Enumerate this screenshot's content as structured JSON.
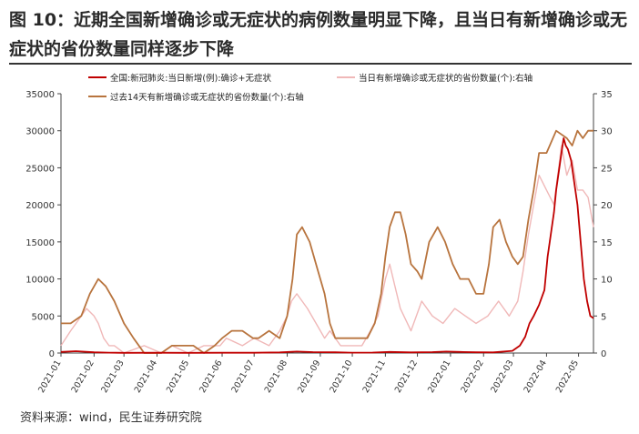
{
  "figure": {
    "title": "图 10：近期全国新增确诊或无症状的病例数量明显下降，且当日有新增确诊或无症状的省份数量同样逐步下降",
    "source": "资料来源：wind，民生证券研究院"
  },
  "colors": {
    "national_cases": "#c00000",
    "daily_provinces": "#f0b8b8",
    "provinces_14d": "#b8743e",
    "axis": "#444444"
  },
  "chart_data": {
    "type": "line",
    "x_type": "date",
    "xlim": [
      "2021-01-01",
      "2022-05-15"
    ],
    "x_ticks": [
      "2021-01",
      "2021-02",
      "2021-03",
      "2021-04",
      "2021-05",
      "2021-06",
      "2021-07",
      "2021-08",
      "2021-09",
      "2021-10",
      "2021-11",
      "2021-12",
      "2022-01",
      "2022-02",
      "2022-03",
      "2022-04",
      "2022-05"
    ],
    "y_left": {
      "range": [
        0,
        35000
      ],
      "ticks": [
        "0",
        "5000",
        "10000",
        "15000",
        "20000",
        "25000",
        "30000",
        "35000"
      ]
    },
    "y_right": {
      "range": [
        0,
        35
      ],
      "ticks": [
        "0",
        "5",
        "10",
        "15",
        "20",
        "25",
        "30",
        "35"
      ]
    },
    "grid": false,
    "legend_position": "top",
    "series": [
      {
        "name": "全国:新冠肺炎:当日新增(例):确诊+无症状",
        "axis": "left",
        "color": "#c00000",
        "x": [
          "2021-01-01",
          "2021-01-15",
          "2021-02-01",
          "2021-02-15",
          "2021-03-01",
          "2021-04-01",
          "2021-05-01",
          "2021-06-01",
          "2021-07-01",
          "2021-07-25",
          "2021-08-10",
          "2021-08-25",
          "2021-09-15",
          "2021-10-01",
          "2021-10-20",
          "2021-11-05",
          "2021-11-25",
          "2021-12-15",
          "2021-12-28",
          "2022-01-10",
          "2022-01-25",
          "2022-02-10",
          "2022-02-28",
          "2022-03-07",
          "2022-03-12",
          "2022-03-16",
          "2022-03-20",
          "2022-03-25",
          "2022-03-30",
          "2022-04-02",
          "2022-04-05",
          "2022-04-08",
          "2022-04-10",
          "2022-04-13",
          "2022-04-15",
          "2022-04-17",
          "2022-04-19",
          "2022-04-21",
          "2022-04-24",
          "2022-04-27",
          "2022-04-30",
          "2022-05-03",
          "2022-05-06",
          "2022-05-09",
          "2022-05-12",
          "2022-05-15"
        ],
        "y": [
          150,
          250,
          100,
          50,
          30,
          40,
          30,
          40,
          40,
          80,
          200,
          120,
          100,
          50,
          60,
          150,
          80,
          120,
          200,
          150,
          100,
          80,
          300,
          1000,
          2200,
          4000,
          5000,
          6500,
          8500,
          13000,
          16000,
          19000,
          22000,
          25000,
          27000,
          29000,
          28000,
          27500,
          26000,
          23000,
          20000,
          15000,
          10000,
          7000,
          5000,
          4700
        ]
      },
      {
        "name": "当日有新增确诊或无症状的省份数量(个):右轴",
        "axis": "right",
        "color": "#f0b8b8",
        "x": [
          "2021-01-01",
          "2021-01-10",
          "2021-01-20",
          "2021-01-25",
          "2021-02-01",
          "2021-02-05",
          "2021-02-10",
          "2021-02-15",
          "2021-02-20",
          "2021-03-01",
          "2021-03-20",
          "2021-04-05",
          "2021-04-15",
          "2021-04-30",
          "2021-05-15",
          "2021-05-30",
          "2021-06-05",
          "2021-06-20",
          "2021-07-01",
          "2021-07-15",
          "2021-07-25",
          "2021-08-01",
          "2021-08-05",
          "2021-08-10",
          "2021-08-20",
          "2021-08-28",
          "2021-09-05",
          "2021-09-10",
          "2021-09-20",
          "2021-09-30",
          "2021-10-10",
          "2021-10-18",
          "2021-10-25",
          "2021-11-01",
          "2021-11-05",
          "2021-11-10",
          "2021-11-15",
          "2021-11-25",
          "2021-12-05",
          "2021-12-15",
          "2021-12-25",
          "2022-01-05",
          "2022-01-15",
          "2022-01-25",
          "2022-02-05",
          "2022-02-15",
          "2022-02-25",
          "2022-03-05",
          "2022-03-10",
          "2022-03-15",
          "2022-03-20",
          "2022-03-25",
          "2022-04-01",
          "2022-04-08",
          "2022-04-15",
          "2022-04-20",
          "2022-04-25",
          "2022-04-30",
          "2022-05-05",
          "2022-05-10",
          "2022-05-15"
        ],
        "y": [
          1,
          3,
          5,
          6,
          5,
          4,
          2,
          1,
          1,
          0,
          1,
          0,
          1,
          0,
          1,
          1,
          2,
          1,
          2,
          1,
          3,
          5,
          7,
          8,
          6,
          4,
          2,
          3,
          1,
          1,
          1,
          3,
          5,
          10,
          12,
          9,
          6,
          3,
          7,
          5,
          4,
          6,
          5,
          4,
          5,
          7,
          5,
          7,
          11,
          16,
          20,
          24,
          22,
          20,
          28,
          24,
          26,
          22,
          22,
          21,
          17
        ]
      },
      {
        "name": "过去14天有新增确诊或无症状的省份数量(个):右轴",
        "axis": "right",
        "color": "#b8743e",
        "x": [
          "2021-01-01",
          "2021-01-10",
          "2021-01-20",
          "2021-01-28",
          "2021-02-05",
          "2021-02-12",
          "2021-02-20",
          "2021-03-01",
          "2021-03-10",
          "2021-03-20",
          "2021-03-28",
          "2021-04-05",
          "2021-04-15",
          "2021-04-25",
          "2021-05-05",
          "2021-05-15",
          "2021-05-25",
          "2021-06-01",
          "2021-06-10",
          "2021-06-20",
          "2021-06-30",
          "2021-07-05",
          "2021-07-15",
          "2021-07-25",
          "2021-08-01",
          "2021-08-06",
          "2021-08-10",
          "2021-08-15",
          "2021-08-22",
          "2021-08-30",
          "2021-09-05",
          "2021-09-10",
          "2021-09-15",
          "2021-09-25",
          "2021-10-05",
          "2021-10-15",
          "2021-10-22",
          "2021-10-28",
          "2021-11-01",
          "2021-11-05",
          "2021-11-10",
          "2021-11-15",
          "2021-11-20",
          "2021-11-25",
          "2021-12-01",
          "2021-12-05",
          "2021-12-12",
          "2021-12-20",
          "2021-12-27",
          "2022-01-03",
          "2022-01-10",
          "2022-01-18",
          "2022-01-25",
          "2022-02-01",
          "2022-02-06",
          "2022-02-10",
          "2022-02-16",
          "2022-02-22",
          "2022-02-28",
          "2022-03-05",
          "2022-03-10",
          "2022-03-15",
          "2022-03-20",
          "2022-03-25",
          "2022-04-01",
          "2022-04-10",
          "2022-04-20",
          "2022-04-25",
          "2022-04-30",
          "2022-05-05",
          "2022-05-10",
          "2022-05-15"
        ],
        "y": [
          4,
          4,
          5,
          8,
          10,
          9,
          7,
          4,
          2,
          0,
          0,
          0,
          1,
          1,
          1,
          0,
          1,
          2,
          3,
          3,
          2,
          2,
          3,
          2,
          5,
          10,
          16,
          17,
          15,
          11,
          8,
          4,
          2,
          2,
          2,
          2,
          4,
          8,
          13,
          17,
          19,
          19,
          16,
          12,
          11,
          10,
          15,
          17,
          15,
          12,
          10,
          10,
          8,
          8,
          12,
          17,
          18,
          15,
          13,
          12,
          13,
          18,
          22,
          27,
          27,
          30,
          29,
          28,
          30,
          29,
          30,
          30
        ]
      }
    ]
  }
}
